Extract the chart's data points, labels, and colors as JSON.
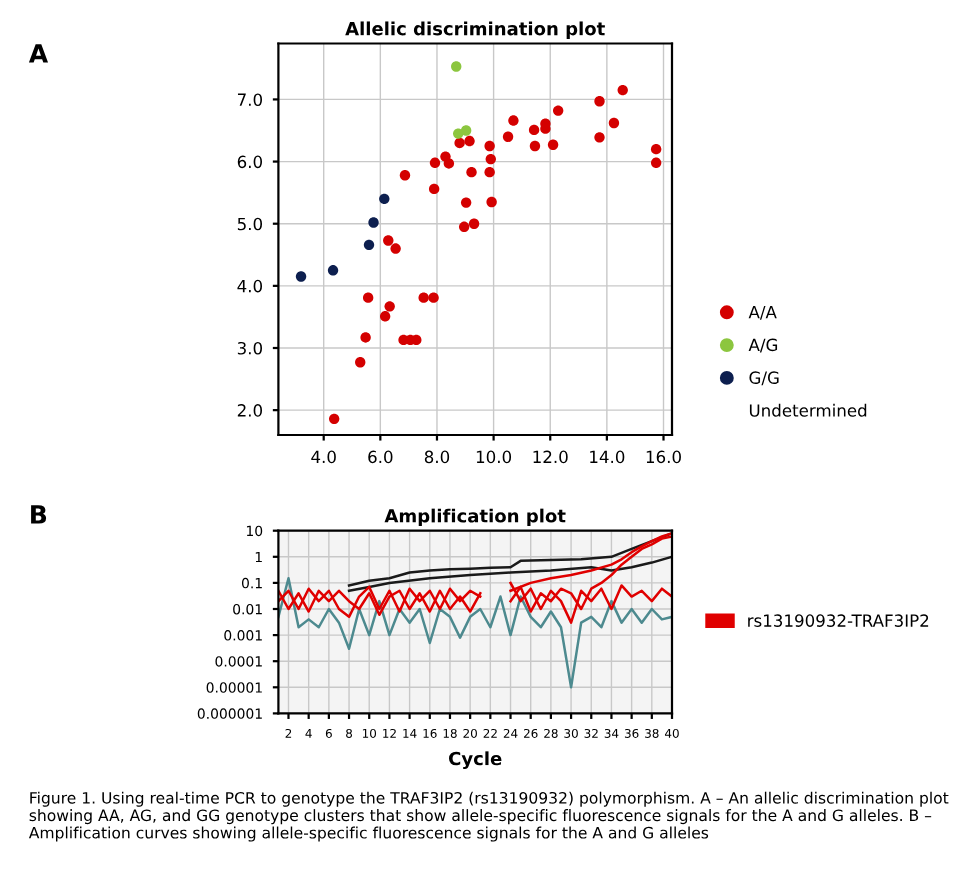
{
  "chart_data": [
    {
      "type": "scatter",
      "title": "Allelic discrimination plot",
      "xlim": [
        2.4,
        16.3
      ],
      "ylim": [
        1.6,
        7.9
      ],
      "xticks": [
        {
          "value": 4,
          "label": "4.0"
        },
        {
          "value": 6,
          "label": "6.0"
        },
        {
          "value": 8,
          "label": "8.0"
        },
        {
          "value": 10,
          "label": "10.0"
        },
        {
          "value": 12,
          "label": "12.0"
        },
        {
          "value": 14,
          "label": "14.0"
        },
        {
          "value": 16,
          "label": "16.0"
        }
      ],
      "yticks": [
        {
          "value": 2,
          "label": "2.0"
        },
        {
          "value": 3,
          "label": "3.0"
        },
        {
          "value": 4,
          "label": "4.0"
        },
        {
          "value": 5,
          "label": "5.0"
        },
        {
          "value": 6,
          "label": "6.0"
        },
        {
          "value": 7,
          "label": "7.0"
        }
      ],
      "grid": true,
      "legend": "right",
      "marker": "circle",
      "annotations": [
        "A"
      ],
      "series": [
        {
          "name": "A/A",
          "color": "#d40000",
          "x": [
            4.37,
            5.29,
            5.48,
            5.57,
            6.17,
            6.33,
            6.28,
            6.54,
            6.87,
            6.82,
            7.06,
            7.27,
            7.53,
            7.88,
            7.9,
            7.93,
            8.3,
            8.42,
            8.8,
            9.15,
            9.22,
            9.03,
            8.96,
            9.31,
            9.86,
            9.9,
            9.86,
            9.93,
            10.51,
            10.7,
            11.43,
            11.46,
            11.83,
            11.83,
            12.1,
            12.28,
            13.74,
            13.74,
            14.25,
            14.56,
            15.74,
            15.74
          ],
          "values": [
            1.86,
            2.77,
            3.17,
            3.81,
            3.51,
            3.67,
            4.73,
            4.6,
            5.78,
            3.13,
            3.13,
            3.13,
            3.81,
            3.81,
            5.56,
            5.98,
            6.08,
            5.97,
            6.3,
            6.33,
            5.83,
            5.34,
            4.95,
            5.0,
            6.25,
            6.04,
            5.83,
            5.35,
            6.4,
            6.66,
            6.51,
            6.25,
            6.61,
            6.53,
            6.27,
            6.82,
            6.97,
            6.39,
            6.62,
            7.15,
            6.2,
            5.98
          ]
        },
        {
          "name": "A/G",
          "color": "#8cc63f",
          "x": [
            8.68,
            8.75,
            9.03
          ],
          "values": [
            7.53,
            6.45,
            6.5
          ]
        },
        {
          "name": "G/G",
          "color": "#0d1f4f",
          "x": [
            3.2,
            4.33,
            5.6,
            5.76,
            6.14
          ],
          "values": [
            4.15,
            4.25,
            4.66,
            5.02,
            5.4
          ]
        },
        {
          "name": "Undetermined"
        }
      ]
    },
    {
      "type": "line",
      "title": "Amplification plot",
      "xlabel": "Cycle",
      "log": "y",
      "xlim": [
        1,
        40
      ],
      "ylim": [
        1e-06,
        10
      ],
      "xticks": [
        2,
        4,
        6,
        8,
        10,
        12,
        14,
        16,
        18,
        20,
        22,
        24,
        26,
        28,
        30,
        32,
        34,
        36,
        38,
        40
      ],
      "yticks": [
        {
          "value": 1e-06,
          "label": "0.000001"
        },
        {
          "value": 1e-05,
          "label": "0.00001"
        },
        {
          "value": 0.0001,
          "label": "0.0001"
        },
        {
          "value": 0.001,
          "label": "0.001"
        },
        {
          "value": 0.01,
          "label": "0.01"
        },
        {
          "value": 0.1,
          "label": "0.1"
        },
        {
          "value": 1,
          "label": "1"
        },
        {
          "value": 10,
          "label": "10"
        }
      ],
      "grid": true,
      "legend": "right",
      "marker": "none",
      "line_style": "solid",
      "annotations": [
        "B",
        "Figure 1. Using real-time PCR to genotype the TRAF3IP2 (rs13190932) polymorphism. A – An allelic discrimination plot showing AA, AG, and GG genotype clusters that show allele-specific fluorescence signals for the A and G alleles. B – Amplification curves showing allele-specific fluorescence signals for the A and G alleles"
      ],
      "series": [
        {
          "color": "#1a1a1a",
          "x": [
            8,
            10,
            12,
            14,
            16,
            18,
            20,
            22,
            24,
            25,
            28,
            31,
            34,
            36,
            38,
            40
          ],
          "values": [
            0.08,
            0.12,
            0.15,
            0.25,
            0.3,
            0.33,
            0.35,
            0.38,
            0.4,
            0.7,
            0.75,
            0.8,
            1,
            2,
            4,
            8
          ]
        },
        {
          "color": "#1a1a1a",
          "x": [
            8,
            10,
            12,
            16,
            20,
            24,
            28,
            32,
            34,
            36,
            38,
            40
          ],
          "values": [
            0.05,
            0.07,
            0.1,
            0.15,
            0.2,
            0.25,
            0.3,
            0.4,
            0.3,
            0.4,
            0.6,
            1
          ]
        },
        {
          "color": "#4d8a8f",
          "x": [
            1,
            2,
            3,
            4,
            5,
            6,
            7,
            8,
            9,
            10,
            11,
            12,
            13,
            14,
            15,
            16,
            17,
            18,
            19,
            20,
            21,
            22,
            23,
            24,
            25,
            26,
            27,
            28,
            29,
            30,
            31,
            32,
            33,
            34,
            35,
            36,
            37,
            38,
            39,
            40
          ],
          "values": [
            0.005,
            0.15,
            0.002,
            0.004,
            0.002,
            0.01,
            0.003,
            0.0003,
            0.01,
            0.001,
            0.02,
            0.001,
            0.01,
            0.003,
            0.01,
            0.0005,
            0.01,
            0.005,
            0.0008,
            0.005,
            0.01,
            0.002,
            0.03,
            0.001,
            0.03,
            0.005,
            0.002,
            0.008,
            0.002,
            1e-05,
            0.003,
            0.005,
            0.002,
            0.02,
            0.003,
            0.01,
            0.003,
            0.01,
            0.004,
            0.005
          ]
        },
        {
          "name": "rs13190932-TRAF3IP2",
          "color": "#e00000",
          "x": [
            1,
            2,
            3,
            4,
            5,
            6,
            7,
            8,
            9,
            10,
            11,
            12,
            13,
            14,
            15,
            16,
            17,
            18,
            19,
            20,
            21,
            22,
            23,
            24,
            25,
            26,
            27,
            28,
            29,
            30,
            31,
            32,
            33,
            34,
            35,
            36,
            37,
            38,
            39,
            40
          ],
          "values": [
            0.02,
            0.05,
            0.01,
            0.06,
            0.02,
            0.05,
            0.01,
            0.005,
            0.03,
            0.07,
            0.01,
            0.05,
            0.008,
            0.06,
            0.02,
            0.05,
            0.01,
            0.06,
            0.02,
            0.05,
            0.03,
            null,
            null,
            0.1,
            0.02,
            0.06,
            0.01,
            0.05,
            0.02,
            0.003,
            0.05,
            0.02,
            0.06,
            0.01,
            0.08,
            0.03,
            0.05,
            0.02,
            0.06,
            0.03
          ]
        },
        {
          "color": "#e00000",
          "x": [
            1,
            2,
            3,
            4,
            5,
            6,
            7,
            8,
            9,
            10,
            11,
            12,
            13,
            14,
            15,
            16,
            17,
            18,
            19,
            20,
            21,
            22,
            23,
            24,
            25,
            26,
            27,
            28,
            29,
            30,
            31,
            32,
            33,
            34,
            35,
            36,
            37,
            38,
            39,
            40
          ],
          "values": [
            0.05,
            0.01,
            0.04,
            0.008,
            0.05,
            0.02,
            0.05,
            0.02,
            0.01,
            0.04,
            0.006,
            0.03,
            0.05,
            0.01,
            0.04,
            0.008,
            0.05,
            0.01,
            0.03,
            0.008,
            0.04,
            null,
            null,
            0.02,
            0.07,
            0.008,
            0.04,
            0.02,
            0.06,
            0.04,
            0.01,
            0.06,
            0.1,
            0.2,
            0.5,
            1,
            2,
            3,
            5,
            6
          ]
        },
        {
          "color": "#e00000",
          "x": [
            24,
            26,
            28,
            30,
            32,
            34,
            35,
            36,
            37,
            38,
            39,
            40
          ],
          "values": [
            0.05,
            0.1,
            0.15,
            0.2,
            0.3,
            0.5,
            0.8,
            1.5,
            2.5,
            4,
            6,
            8
          ]
        }
      ]
    }
  ]
}
